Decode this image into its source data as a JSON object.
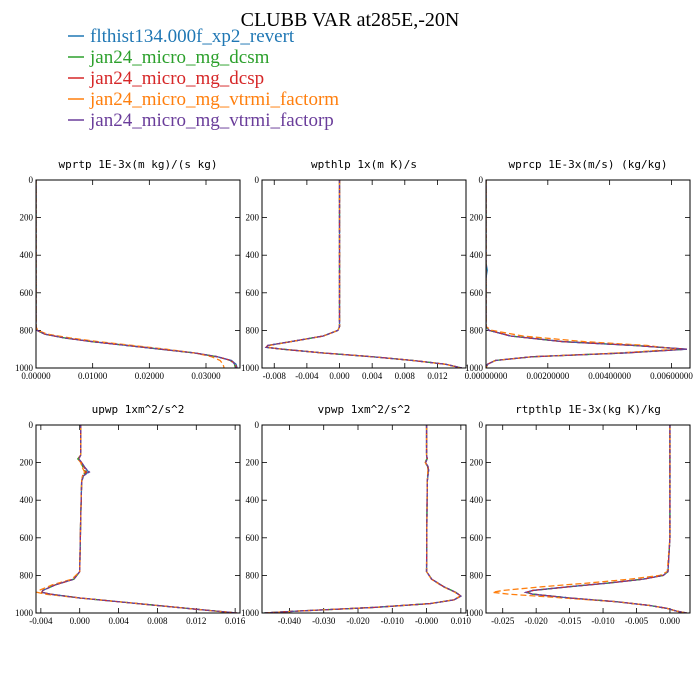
{
  "figure": {
    "title": "CLUBB VAR at285E,-20N",
    "legend": [
      {
        "name": "flthist134.000f_xp2_revert",
        "color": "#1f77b4"
      },
      {
        "name": "jan24_micro_mg_dcsm",
        "color": "#2ca02c"
      },
      {
        "name": "jan24_micro_mg_dcsp",
        "color": "#d62728"
      },
      {
        "name": "jan24_micro_mg_vtrmi_factorm",
        "color": "#ff7f0e"
      },
      {
        "name": "jan24_micro_mg_vtrmi_factorp",
        "color": "#6a3d9a"
      }
    ]
  },
  "chart_data": [
    {
      "type": "line",
      "title": "wprtp  1E-3x(m kg)/(s kg)",
      "xlim": [
        0,
        0.036
      ],
      "ylim": [
        1000,
        0
      ],
      "xticks": [
        "0.00000",
        "0.01000",
        "0.02000",
        "0.03000"
      ],
      "xtick_values": [
        0,
        0.01,
        0.02,
        0.03
      ],
      "yticks": [
        "0",
        "200",
        "400",
        "600",
        "800",
        "1000"
      ],
      "ytick_values": [
        0,
        200,
        400,
        600,
        800,
        1000
      ],
      "y": [
        0,
        200,
        400,
        600,
        780,
        800,
        820,
        840,
        860,
        880,
        900,
        920,
        940,
        960,
        980,
        1000
      ],
      "series": [
        {
          "values": [
            0,
            0,
            0,
            0,
            0,
            0.0002,
            0.0015,
            0.005,
            0.01,
            0.016,
            0.022,
            0.028,
            0.032,
            0.0345,
            0.0353,
            0.0355
          ]
        },
        {
          "values": [
            0,
            0,
            0,
            0,
            0,
            0.0002,
            0.0015,
            0.005,
            0.01,
            0.016,
            0.022,
            0.028,
            0.032,
            0.0343,
            0.035,
            0.0352
          ]
        },
        {
          "values": [
            0,
            0,
            0,
            0,
            0,
            0.0002,
            0.0016,
            0.005,
            0.01,
            0.016,
            0.022,
            0.028,
            0.032,
            0.0344,
            0.0352,
            0.0354
          ]
        },
        {
          "values": [
            0,
            0,
            0,
            0,
            0,
            0.0003,
            0.002,
            0.006,
            0.011,
            0.017,
            0.023,
            0.028,
            0.031,
            0.0325,
            0.033,
            0.0332
          ]
        },
        {
          "values": [
            0,
            0,
            0,
            0,
            0,
            0.0002,
            0.0016,
            0.005,
            0.01,
            0.016,
            0.022,
            0.028,
            0.032,
            0.0344,
            0.0351,
            0.0353
          ]
        }
      ]
    },
    {
      "type": "line",
      "title": "wpthlp  1x(m K)/s",
      "xlim": [
        -0.0095,
        0.0155
      ],
      "ylim": [
        1000,
        0
      ],
      "xticks": [
        "-0.008",
        "-0.004",
        "0.000",
        "0.004",
        "0.008",
        "0.012"
      ],
      "xtick_values": [
        -0.008,
        -0.004,
        0,
        0.004,
        0.008,
        0.012
      ],
      "yticks": [
        "0",
        "200",
        "400",
        "600",
        "800",
        "1000"
      ],
      "ytick_values": [
        0,
        200,
        400,
        600,
        800,
        1000
      ],
      "y": [
        0,
        200,
        400,
        600,
        780,
        800,
        830,
        860,
        880,
        890,
        900,
        920,
        940,
        960,
        980,
        1000
      ],
      "series": [
        {
          "values": [
            0,
            0,
            0,
            0,
            0,
            -0.0002,
            -0.002,
            -0.006,
            -0.0088,
            -0.009,
            -0.007,
            -0.002,
            0.004,
            0.009,
            0.013,
            0.015
          ]
        },
        {
          "values": [
            0,
            0,
            0,
            0,
            0,
            -0.0002,
            -0.002,
            -0.006,
            -0.0087,
            -0.0089,
            -0.007,
            -0.002,
            0.004,
            0.009,
            0.013,
            0.0149
          ]
        },
        {
          "values": [
            0,
            0,
            0,
            0,
            0,
            -0.0002,
            -0.002,
            -0.006,
            -0.0088,
            -0.009,
            -0.007,
            -0.002,
            0.004,
            0.009,
            0.013,
            0.015
          ]
        },
        {
          "values": [
            0,
            0,
            0,
            0,
            0,
            -0.0002,
            -0.002,
            -0.006,
            -0.0086,
            -0.0088,
            -0.007,
            -0.002,
            0.004,
            0.009,
            0.013,
            0.0148
          ]
        },
        {
          "values": [
            0,
            0,
            0,
            0,
            0,
            -0.0002,
            -0.002,
            -0.006,
            -0.0088,
            -0.009,
            -0.007,
            -0.002,
            0.004,
            0.009,
            0.013,
            0.015
          ]
        }
      ]
    },
    {
      "type": "line",
      "title": "wprcp  1E-3x(m/s) (kg/kg)",
      "xlim": [
        0,
        0.0066
      ],
      "ylim": [
        1000,
        0
      ],
      "xticks": [
        "0.00000000",
        "0.00200000",
        "0.00400000",
        "0.00600000"
      ],
      "xtick_values": [
        0,
        0.002,
        0.004,
        0.006
      ],
      "yticks": [
        "0",
        "200",
        "400",
        "600",
        "800",
        "1000"
      ],
      "ytick_values": [
        0,
        200,
        400,
        600,
        800,
        1000
      ],
      "y": [
        0,
        200,
        400,
        440,
        480,
        520,
        600,
        780,
        800,
        830,
        860,
        880,
        900,
        920,
        940,
        960,
        980,
        1000
      ],
      "series": [
        {
          "values": [
            0,
            0,
            0,
            0,
            4e-05,
            0,
            0,
            0,
            0.0001,
            0.0008,
            0.0025,
            0.0048,
            0.0065,
            0.0045,
            0.0015,
            0.0003,
            5e-05,
            0
          ]
        },
        {
          "values": [
            0,
            0,
            0,
            0,
            0,
            0,
            0,
            0,
            0.0001,
            0.0008,
            0.0025,
            0.0048,
            0.0064,
            0.0045,
            0.0015,
            0.0003,
            5e-05,
            0
          ]
        },
        {
          "values": [
            0,
            0,
            0,
            0,
            0,
            0,
            0,
            0,
            0.0001,
            0.0008,
            0.0025,
            0.0048,
            0.0065,
            0.0045,
            0.0015,
            0.0003,
            5e-05,
            0
          ]
        },
        {
          "values": [
            0,
            0,
            0,
            0,
            0,
            0,
            0,
            0,
            0.0002,
            0.0012,
            0.0032,
            0.0052,
            0.0062,
            0.0043,
            0.0015,
            0.0003,
            5e-05,
            0
          ]
        },
        {
          "values": [
            0,
            0,
            0,
            0,
            0,
            0,
            0,
            0,
            0.0001,
            0.0008,
            0.0025,
            0.0048,
            0.0065,
            0.0045,
            0.0015,
            0.0003,
            5e-05,
            0
          ]
        }
      ]
    },
    {
      "type": "line",
      "title": "upwp  1xm^2/s^2",
      "xlim": [
        -0.0045,
        0.0165
      ],
      "ylim": [
        1000,
        0
      ],
      "xticks": [
        "-0.004",
        "0.000",
        "0.004",
        "0.008",
        "0.012",
        "0.016"
      ],
      "xtick_values": [
        -0.004,
        0,
        0.004,
        0.008,
        0.012,
        0.016
      ],
      "yticks": [
        "0",
        "200",
        "400",
        "600",
        "800",
        "1000"
      ],
      "ytick_values": [
        0,
        200,
        400,
        600,
        800,
        1000
      ],
      "y": [
        0,
        160,
        180,
        200,
        230,
        250,
        270,
        300,
        500,
        780,
        820,
        850,
        880,
        890,
        900,
        920,
        940,
        960,
        980,
        1000
      ],
      "series": [
        {
          "values": [
            0.0001,
            0.0001,
            -0.0001,
            0.0002,
            0.0006,
            0.0009,
            0.0004,
            0.0002,
            0.0001,
            0,
            -0.0006,
            -0.0025,
            -0.0038,
            -0.0039,
            -0.003,
            0.0,
            0.004,
            0.008,
            0.012,
            0.0162
          ]
        },
        {
          "values": [
            0.0001,
            0.0001,
            -0.0002,
            0.0001,
            0.0004,
            0.0006,
            0.0003,
            0.0002,
            0.0001,
            0,
            -0.0006,
            -0.0025,
            -0.0038,
            -0.0039,
            -0.003,
            0.0,
            0.004,
            0.008,
            0.012,
            0.0162
          ]
        },
        {
          "values": [
            0.0001,
            0.0001,
            -0.0001,
            0.0002,
            0.0005,
            0.0007,
            0.0003,
            0.0002,
            0.0001,
            0,
            -0.0006,
            -0.0025,
            -0.0038,
            -0.0039,
            -0.003,
            0.0,
            0.004,
            0.008,
            0.012,
            0.0162
          ]
        },
        {
          "values": [
            0.0001,
            0.0001,
            -0.0002,
            0.0001,
            0.0003,
            0.0005,
            0.0003,
            0.0002,
            0.0001,
            0,
            -0.0008,
            -0.0028,
            -0.0042,
            -0.0044,
            -0.0035,
            0.0,
            0.004,
            0.008,
            0.012,
            0.016
          ]
        },
        {
          "values": [
            0.0001,
            0.0001,
            -0.0001,
            0.0002,
            0.0006,
            0.001,
            0.0004,
            0.0002,
            0.0001,
            0,
            -0.0006,
            -0.0025,
            -0.0038,
            -0.0039,
            -0.003,
            0.0,
            0.004,
            0.008,
            0.012,
            0.0162
          ]
        }
      ]
    },
    {
      "type": "line",
      "title": "vpwp  1xm^2/s^2",
      "xlim": [
        -0.048,
        0.0115
      ],
      "ylim": [
        1000,
        0
      ],
      "xticks": [
        "-0.040",
        "-0.030",
        "-0.020",
        "-0.010",
        "-0.000",
        "0.010"
      ],
      "xtick_values": [
        -0.04,
        -0.03,
        -0.02,
        -0.01,
        0,
        0.01
      ],
      "yticks": [
        "0",
        "200",
        "400",
        "600",
        "800",
        "1000"
      ],
      "ytick_values": [
        0,
        200,
        400,
        600,
        800,
        1000
      ],
      "y": [
        0,
        160,
        180,
        200,
        220,
        240,
        300,
        500,
        780,
        820,
        860,
        890,
        910,
        930,
        950,
        970,
        990,
        1000
      ],
      "series": [
        {
          "values": [
            0,
            0,
            0.0002,
            -0.0003,
            0.0004,
            0.0006,
            0.0002,
            0.0001,
            0,
            0.0015,
            0.005,
            0.0085,
            0.01,
            0.008,
            0.001,
            -0.015,
            -0.038,
            -0.0475
          ]
        },
        {
          "values": [
            0,
            0,
            0.0001,
            -0.0005,
            0.0003,
            0.0004,
            0.0002,
            0.0001,
            0,
            0.0015,
            0.005,
            0.0085,
            0.01,
            0.008,
            0.001,
            -0.015,
            -0.038,
            -0.0475
          ]
        },
        {
          "values": [
            0,
            0,
            0.0002,
            -0.0003,
            0.0004,
            0.0005,
            0.0002,
            0.0001,
            0,
            0.0015,
            0.005,
            0.0085,
            0.01,
            0.008,
            0.001,
            -0.015,
            -0.038,
            -0.0475
          ]
        },
        {
          "values": [
            0,
            0,
            0.0001,
            -0.0004,
            0.0003,
            0.0004,
            0.0002,
            0.0001,
            0,
            0.0014,
            0.0048,
            0.0083,
            0.0098,
            0.0078,
            0.001,
            -0.015,
            -0.038,
            -0.047
          ]
        },
        {
          "values": [
            0,
            0,
            0.0002,
            -0.0003,
            0.0004,
            0.0006,
            0.0002,
            0.0001,
            0,
            0.0015,
            0.005,
            0.0085,
            0.01,
            0.008,
            0.001,
            -0.015,
            -0.038,
            -0.0475
          ]
        }
      ]
    },
    {
      "type": "line",
      "title": "rtpthlp  1E-3x(kg K)/kg",
      "xlim": [
        -0.0275,
        0.003
      ],
      "ylim": [
        1000,
        0
      ],
      "xticks": [
        "-0.025",
        "-0.020",
        "-0.015",
        "-0.010",
        "-0.005",
        "0.000"
      ],
      "xtick_values": [
        -0.025,
        -0.02,
        -0.015,
        -0.01,
        -0.005,
        0
      ],
      "yticks": [
        "0",
        "200",
        "400",
        "600",
        "800",
        "1000"
      ],
      "ytick_values": [
        0,
        200,
        400,
        600,
        800,
        1000
      ],
      "y": [
        0,
        200,
        400,
        600,
        780,
        800,
        820,
        840,
        860,
        880,
        890,
        900,
        920,
        940,
        960,
        975,
        990,
        1000
      ],
      "series": [
        {
          "values": [
            0,
            0,
            0,
            0,
            -0.0003,
            -0.001,
            -0.004,
            -0.009,
            -0.015,
            -0.0205,
            -0.0215,
            -0.0205,
            -0.015,
            -0.008,
            -0.003,
            -0.0005,
            0.001,
            0.0025
          ]
        },
        {
          "values": [
            0,
            0,
            0,
            0,
            -0.0003,
            -0.001,
            -0.004,
            -0.009,
            -0.015,
            -0.0205,
            -0.0213,
            -0.0203,
            -0.015,
            -0.008,
            -0.003,
            -0.0005,
            0.001,
            0.0025
          ]
        },
        {
          "values": [
            0,
            0,
            0,
            0,
            -0.0003,
            -0.001,
            -0.004,
            -0.009,
            -0.015,
            -0.0205,
            -0.0215,
            -0.0205,
            -0.015,
            -0.008,
            -0.003,
            -0.0005,
            0.001,
            0.0025
          ]
        },
        {
          "values": [
            0,
            0,
            0,
            0,
            -0.0004,
            -0.0015,
            -0.006,
            -0.012,
            -0.019,
            -0.025,
            -0.0265,
            -0.024,
            -0.016,
            -0.008,
            -0.003,
            -0.0005,
            0.001,
            0.0025
          ]
        },
        {
          "values": [
            0,
            0,
            0,
            0,
            -0.0003,
            -0.001,
            -0.004,
            -0.009,
            -0.015,
            -0.0205,
            -0.0215,
            -0.0205,
            -0.015,
            -0.008,
            -0.003,
            -0.0005,
            0.001,
            0.0025
          ]
        }
      ]
    }
  ]
}
